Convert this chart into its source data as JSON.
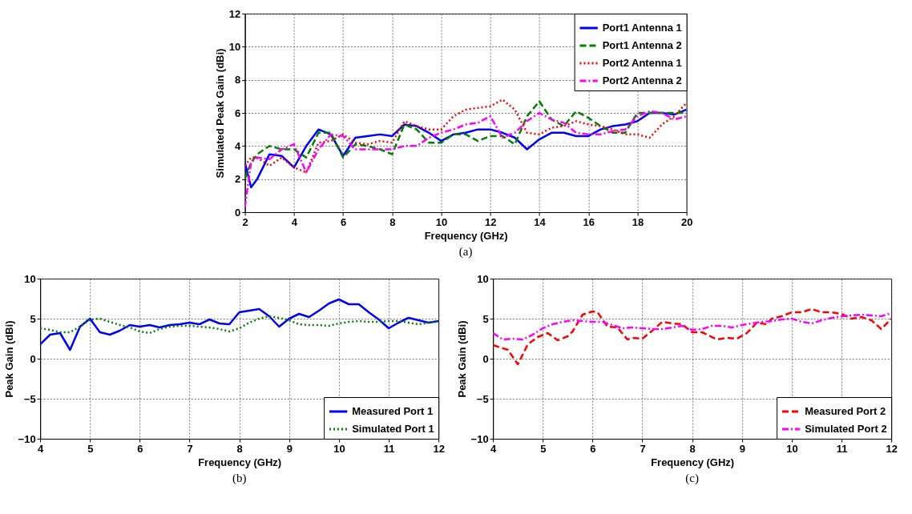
{
  "chart_data": [
    {
      "type": "line",
      "xlabel": "Frequency (GHz)",
      "ylabel": "Simulated Peak Gain (dBi)",
      "xlim": [
        2,
        20
      ],
      "ylim": [
        0,
        12
      ],
      "xticks": [
        2,
        4,
        6,
        8,
        10,
        12,
        14,
        16,
        18,
        20
      ],
      "yticks": [
        0,
        2,
        4,
        6,
        8,
        10,
        12
      ],
      "grid": true,
      "legend": "top right",
      "annotations": [
        "(a)"
      ],
      "x": [
        2,
        2.25,
        2.5,
        3,
        3.5,
        4,
        4.5,
        5,
        5.5,
        6,
        6.5,
        7,
        7.5,
        8,
        8.5,
        9,
        9.5,
        10,
        10.5,
        11,
        11.5,
        12,
        12.5,
        13,
        13.5,
        14,
        14.5,
        15,
        15.5,
        16,
        16.5,
        17,
        17.5,
        18,
        18.5,
        19,
        19.5,
        20
      ],
      "series": [
        {
          "name": "Port1 Antenna 1",
          "color": "#0000ff",
          "line_style": "solid",
          "values": [
            3.0,
            1.5,
            2.0,
            3.5,
            3.4,
            2.7,
            4.0,
            5.0,
            4.7,
            3.4,
            4.5,
            4.6,
            4.7,
            4.6,
            5.3,
            5.2,
            4.8,
            4.3,
            4.7,
            4.8,
            5.0,
            5.0,
            4.8,
            4.5,
            3.8,
            4.4,
            4.8,
            4.8,
            4.6,
            4.6,
            5.0,
            5.2,
            5.3,
            5.5,
            6.0,
            6.0,
            5.9,
            6.2
          ]
        },
        {
          "name": "Port1 Antenna 2",
          "color": "#008000",
          "line_style": "dashed",
          "values": [
            2.0,
            3.0,
            3.5,
            4.0,
            3.8,
            3.8,
            3.3,
            4.8,
            4.8,
            3.3,
            4.1,
            4.0,
            3.8,
            3.5,
            5.3,
            5.0,
            4.2,
            4.2,
            4.7,
            4.7,
            4.3,
            4.6,
            4.6,
            4.1,
            5.8,
            6.7,
            5.6,
            5.2,
            6.1,
            5.7,
            5.2,
            4.8,
            4.8,
            6.0,
            6.0,
            6.0,
            6.0,
            6.0
          ]
        },
        {
          "name": "Port2 Antenna 1",
          "color": "#ff0000",
          "line_style": "dotted",
          "values": [
            2.8,
            3.3,
            3.3,
            2.8,
            3.3,
            2.7,
            2.4,
            4.2,
            4.3,
            4.7,
            4.2,
            4.1,
            4.3,
            4.2,
            5.5,
            5.2,
            5.0,
            5.0,
            5.8,
            6.2,
            6.3,
            6.4,
            6.8,
            6.2,
            4.8,
            4.7,
            5.1,
            5.2,
            5.5,
            5.3,
            5.2,
            5.0,
            4.7,
            4.7,
            4.5,
            5.3,
            5.8,
            6.6
          ]
        },
        {
          "name": "Port2 Antenna 2",
          "color": "#ff00ff",
          "line_style": "dashdot",
          "values": [
            0.3,
            3.0,
            3.3,
            3.2,
            3.8,
            4.1,
            2.4,
            3.8,
            4.7,
            4.6,
            3.8,
            3.8,
            3.8,
            3.8,
            4.0,
            4.0,
            4.5,
            4.8,
            5.0,
            5.3,
            5.4,
            5.8,
            4.5,
            4.8,
            5.5,
            6.0,
            5.6,
            5.4,
            4.8,
            4.7,
            4.7,
            4.9,
            5.0,
            5.8,
            6.1,
            6.0,
            5.6,
            5.8
          ]
        }
      ]
    },
    {
      "type": "line",
      "xlabel": "Frequency (GHz)",
      "ylabel": "Peak Gain (dBi)",
      "xlim": [
        4,
        12
      ],
      "ylim": [
        -10,
        10
      ],
      "xticks": [
        4,
        5,
        6,
        7,
        8,
        9,
        10,
        11,
        12
      ],
      "yticks": [
        -10,
        -5,
        0,
        5,
        10
      ],
      "grid": true,
      "legend": "bottom right",
      "annotations": [
        "(b)"
      ],
      "x": [
        4,
        4.2,
        4.4,
        4.6,
        4.8,
        5,
        5.2,
        5.4,
        5.6,
        5.8,
        6,
        6.2,
        6.4,
        6.6,
        6.8,
        7,
        7.2,
        7.4,
        7.6,
        7.8,
        8,
        8.2,
        8.4,
        8.6,
        8.8,
        9,
        9.2,
        9.4,
        9.6,
        9.8,
        10,
        10.2,
        10.4,
        10.6,
        10.8,
        11,
        11.2,
        11.4,
        11.6,
        11.8,
        12
      ],
      "series": [
        {
          "name": "Measured Port 1",
          "color": "#0000ff",
          "line_style": "solid",
          "values": [
            1.8,
            3.0,
            3.2,
            1.1,
            4.0,
            5.0,
            3.3,
            3.0,
            3.5,
            4.2,
            4.0,
            4.2,
            3.9,
            4.2,
            4.3,
            4.5,
            4.3,
            4.9,
            4.4,
            4.3,
            5.8,
            6.0,
            6.2,
            5.3,
            4.0,
            5.0,
            5.6,
            5.2,
            6.0,
            6.9,
            7.4,
            6.8,
            6.8,
            5.8,
            4.9,
            3.8,
            4.5,
            5.1,
            4.8,
            4.5,
            4.7
          ]
        },
        {
          "name": "Simulated Port 1",
          "color": "#008000",
          "line_style": "dotted",
          "values": [
            3.8,
            3.6,
            3.3,
            3.3,
            4.0,
            4.9,
            5.0,
            4.6,
            4.2,
            3.9,
            3.4,
            3.2,
            3.7,
            4.0,
            4.1,
            4.1,
            4.0,
            3.9,
            3.7,
            3.4,
            3.8,
            4.5,
            5.0,
            5.3,
            5.1,
            4.8,
            4.3,
            4.2,
            4.2,
            4.1,
            4.4,
            4.6,
            4.7,
            4.6,
            4.6,
            4.7,
            4.7,
            4.5,
            4.3,
            4.5,
            4.7
          ]
        }
      ]
    },
    {
      "type": "line",
      "xlabel": "Frequency (GHz)",
      "ylabel": "Peak Gain (dBi)",
      "xlim": [
        4,
        12
      ],
      "ylim": [
        -10,
        10
      ],
      "xticks": [
        4,
        5,
        6,
        7,
        8,
        9,
        10,
        11,
        12
      ],
      "yticks": [
        -10,
        -5,
        0,
        5,
        10
      ],
      "grid": true,
      "legend": "bottom right",
      "annotations": [
        "(c)"
      ],
      "x": [
        4,
        4.2,
        4.4,
        4.6,
        4.8,
        5,
        5.2,
        5.4,
        5.6,
        5.8,
        6,
        6.2,
        6.4,
        6.6,
        6.8,
        7,
        7.2,
        7.4,
        7.6,
        7.8,
        8,
        8.2,
        8.4,
        8.6,
        8.8,
        9,
        9.2,
        9.4,
        9.6,
        9.8,
        10,
        10.2,
        10.4,
        10.6,
        10.8,
        11,
        11.2,
        11.4,
        11.6,
        11.8,
        12
      ],
      "series": [
        {
          "name": "Measured Port 2",
          "color": "#ff0000",
          "line_style": "dashed",
          "x": [
            4,
            4.3,
            4.5,
            4.7,
            4.9,
            5.1,
            5.3,
            5.5,
            5.6,
            5.8,
            6.0,
            6.1,
            6.3,
            6.5,
            6.7,
            6.8,
            7.0,
            7.2,
            7.4,
            7.6,
            7.8,
            8.0,
            8.2,
            8.5,
            8.7,
            8.9,
            9.1,
            9.3,
            9.5,
            9.6,
            9.8,
            10,
            10.2,
            10.4,
            10.6,
            10.8,
            11,
            11.2,
            11.4,
            11.6,
            11.8,
            12
          ],
          "values": [
            1.7,
            1.1,
            -0.7,
            1.8,
            2.7,
            3.2,
            2.3,
            2.8,
            3.4,
            5.5,
            5.9,
            5.8,
            4.0,
            3.9,
            2.4,
            2.6,
            2.5,
            3.5,
            4.6,
            4.4,
            4.3,
            3.3,
            3.3,
            2.4,
            2.6,
            2.5,
            3.2,
            4.5,
            4.3,
            5.0,
            5.3,
            5.8,
            5.8,
            6.2,
            5.8,
            5.8,
            5.6,
            5.0,
            5.2,
            4.8,
            3.7,
            5.0
          ]
        },
        {
          "name": "Simulated Port 2",
          "color": "#ff00ff",
          "line_style": "dashdot",
          "values": [
            3.2,
            2.4,
            2.5,
            2.4,
            3.0,
            3.8,
            4.3,
            4.6,
            4.8,
            4.7,
            4.6,
            4.6,
            4.2,
            3.8,
            3.9,
            3.8,
            3.7,
            3.7,
            3.9,
            4.1,
            3.6,
            3.7,
            4.1,
            4.1,
            3.9,
            4.2,
            4.4,
            4.6,
            4.7,
            4.9,
            5.0,
            4.6,
            4.4,
            4.8,
            5.1,
            5.3,
            5.4,
            5.5,
            5.4,
            5.3,
            5.7
          ]
        }
      ]
    }
  ]
}
